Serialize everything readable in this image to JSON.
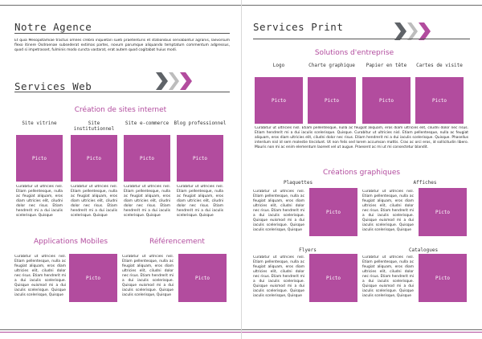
{
  "left": {
    "agence": {
      "title": "Notre Agence",
      "text": "Et quia Mesopotamiae tractus omnes crebro inquietari sueti praetenturis et stationibus servabantur agrariis, laevorsum flexo itinere Osdroenae subsederat extimas partes, novum parumque aliquando temptatum commentum adgressus, quod si impetrasset, fulminis modo cuncta vastarat, erat autem quod cogitabat huius modi."
    },
    "web": {
      "title": "Services Web",
      "subtitle": "Création de sites internet",
      "columns": [
        {
          "label": "Site vitrine"
        },
        {
          "label": "Site institutionnel"
        },
        {
          "label": "Site e-commerce"
        },
        {
          "label": "Blog professionnel"
        }
      ],
      "picto_label": "Picto",
      "card_text": "Curabitur ut ultricies nisl. Etiam pellentesque, nulla ac feugiat aliquam, eros diam ultricies elit, ciludni dolor nec risus. Etiam hendrerit mi a dui iaculis scelerisque. Quisque"
    },
    "mobile": {
      "title": "Applications Mobiles",
      "text": "Curabitur ut ultricies nisl. Etiam pellentesque, nulla ac feugiat aliquam, eros diam ultricies elit, ciludni dolor nec risus. Etiam hendrerit mi a dui iaculis scelerisque. Quisque euismod mi a dui iaculis scelerisque. Quisque iaculis scelerisque, Quisque",
      "picto_label": "Picto"
    },
    "referencement": {
      "title": "Référencement",
      "text": "Curabitur ut ultricies nisl. Etiam pellentesque, nulla ac feugiat aliquam, eros diam ultricies elit, ciludni dolor nec risus. Etiam hendrerit mi a dui iaculis scelerisque. Quisque euismod mi a dui iaculis scelerisque. Quisque iaculis scelerisque, Quisque",
      "picto_label": "Picto"
    }
  },
  "right": {
    "print": {
      "title": "Services Print",
      "subtitle": "Solutions d'entreprise",
      "columns": [
        {
          "label": "Logo"
        },
        {
          "label": "Charte graphique"
        },
        {
          "label": "Papier en tête"
        },
        {
          "label": "Cartes de visite"
        }
      ],
      "picto_label": "Picto",
      "text": "Curabitur ut ultricies nisl. Etiam pellentesque, nulla ac feugiat aliquam, eros diam ultricies elit, ciludni dolor nec risus. Etiam hendrerit mi a dui iaculis scelerisque. Quisque. Curabitur ut ultricies nisl. Etiam pellentesque, nulla ac feugiat aliquam, eros diam ultricies elit, ciludni dolor nec risus. Etiam hendrerit mi a dui iaculis scelerisque. Quisque. Phasellus interdum nisl id sem molestie tincidunt. Ut non felis sed lorem accumsan mattis. Cras ac orci eros, id sollicitudin libero. Mauris non mi ac enim elementum laoreet vel ut augue. Praesent ac mi ut mi consectetur blandit."
    },
    "graphiques": {
      "title": "Créations graphiques",
      "cards": [
        {
          "label": "Plaquettes"
        },
        {
          "label": "Affiches"
        },
        {
          "label": "Flyers"
        },
        {
          "label": "Catalogues"
        }
      ],
      "picto_label": "Picto",
      "card_text": "Curabitur ut ultricies nisl. Etiam pellentesque, nulla ac feugiat aliquam, eros diam ultricies elit, ciludni dolor nec risus. Etiam hendrerit mi a dui iaculis scelerisque. Quisque euismod mi a dui iaculis scelerisque. Quisque iaculis scelerisque, Quisque"
    }
  },
  "colors": {
    "accent": "#b24c9e",
    "dark": "#5f6368",
    "light": "#bdbdbd"
  }
}
